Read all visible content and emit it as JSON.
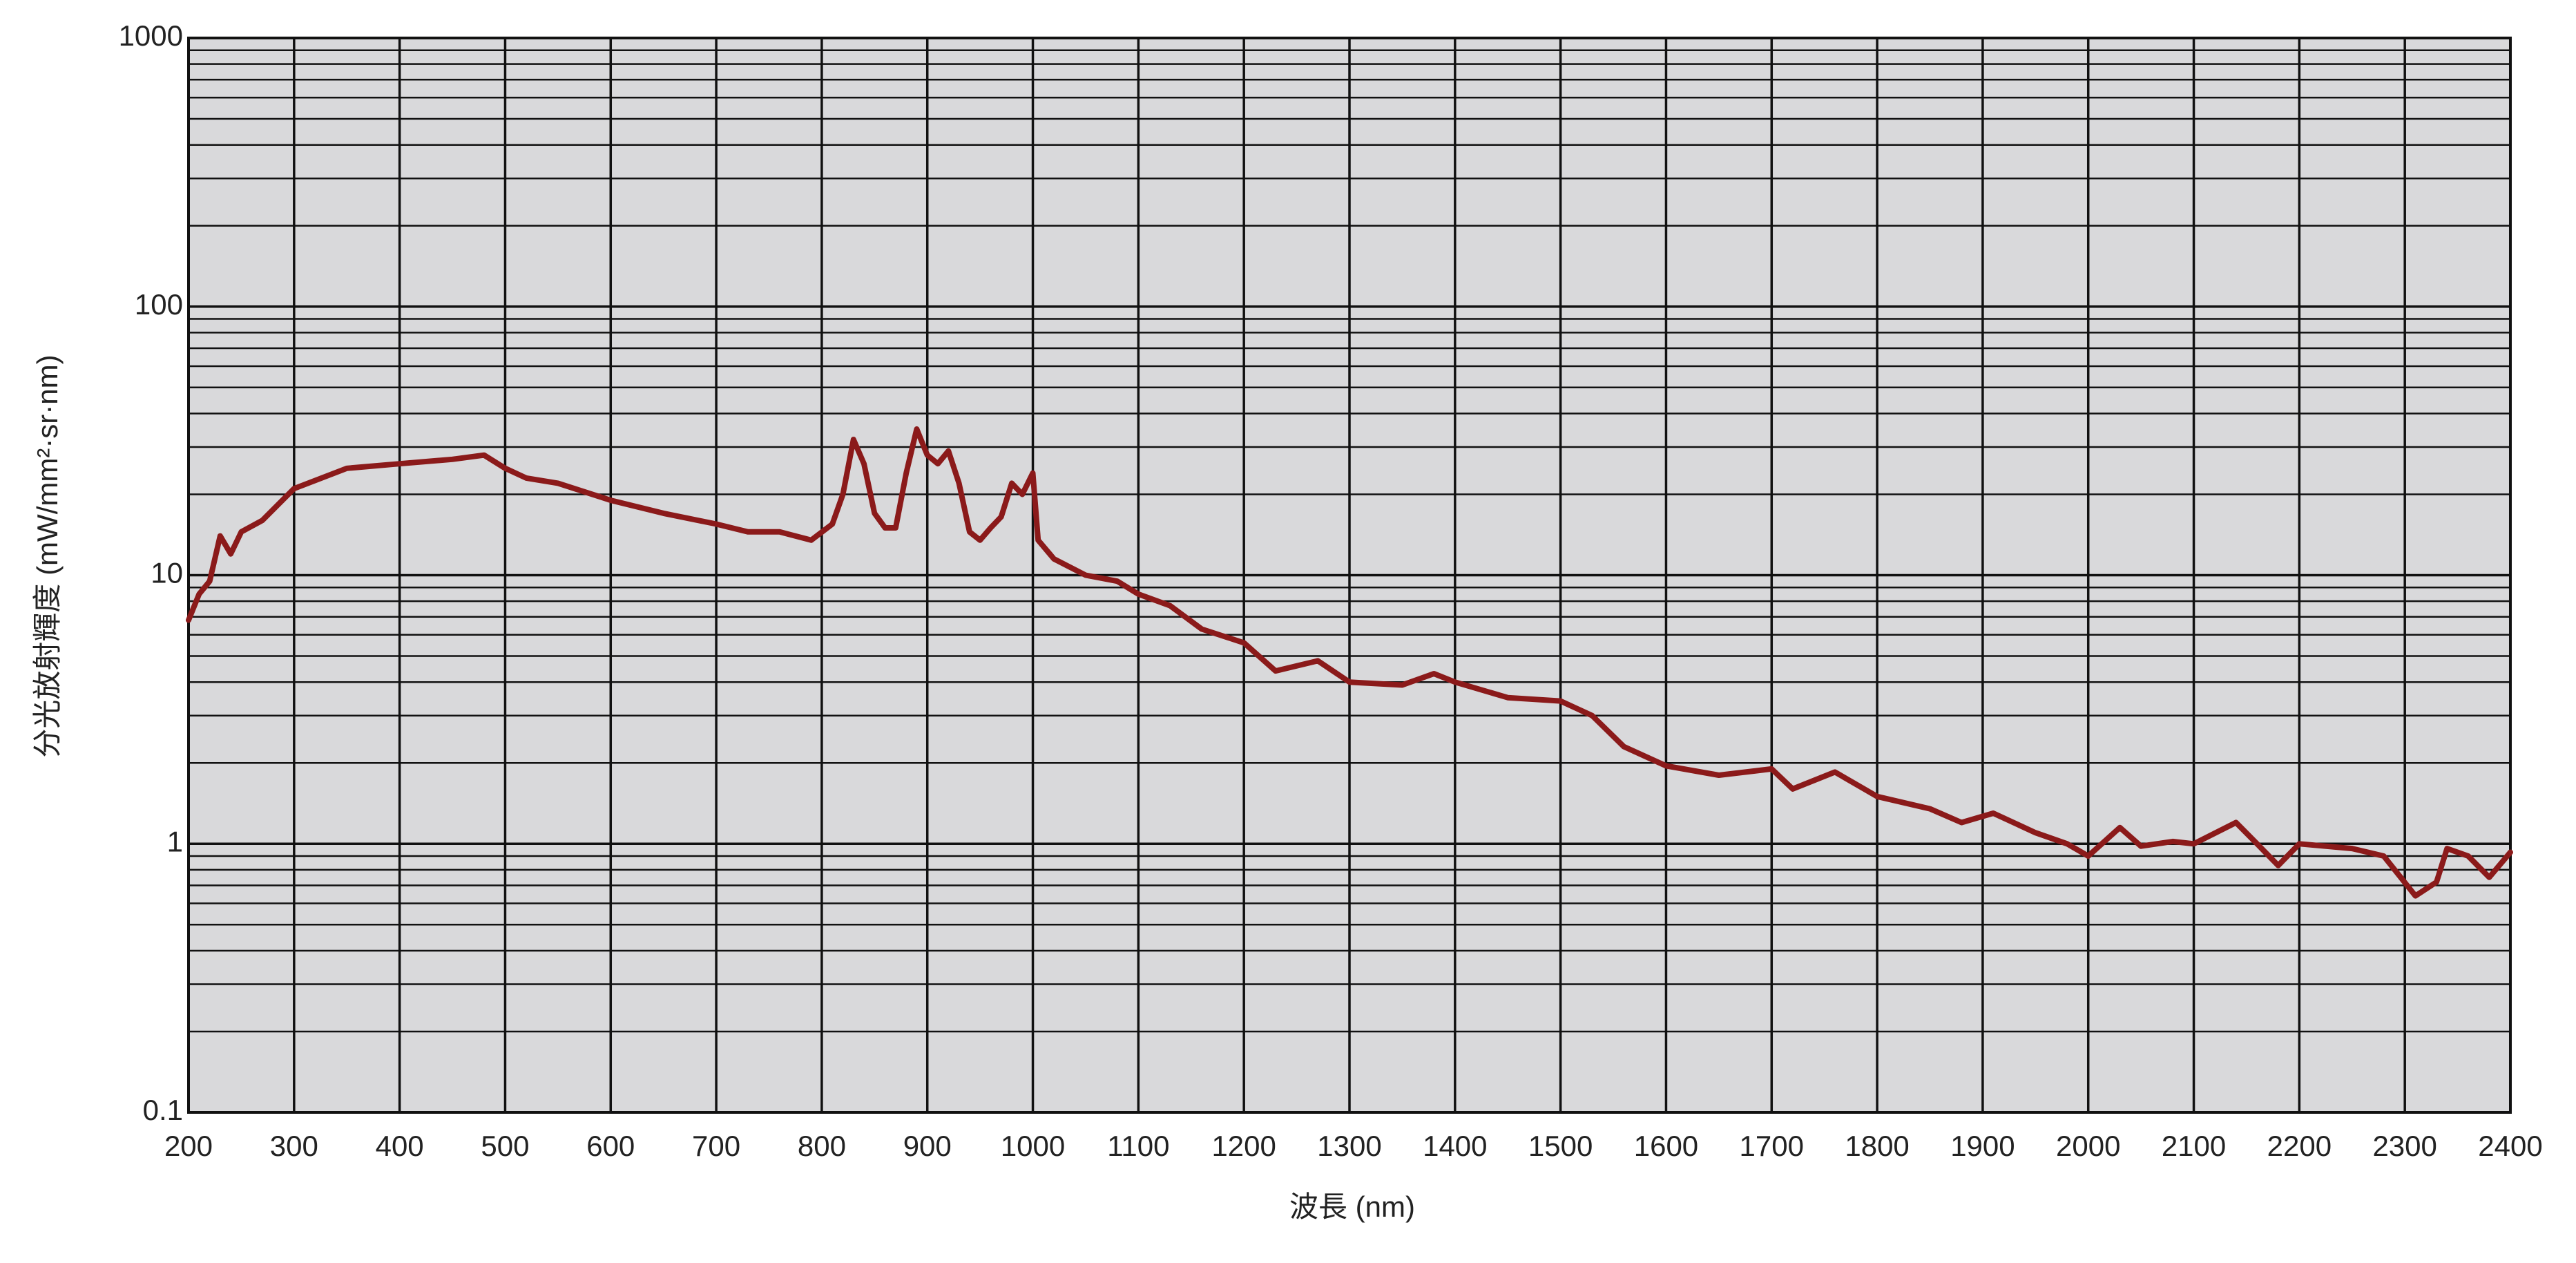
{
  "chart_data": {
    "type": "line",
    "xlabel": "波長 (nm)",
    "ylabel": "分光放射輝度 (mW/mm²·sr·nm)",
    "x": [
      200,
      210,
      220,
      230,
      240,
      250,
      270,
      300,
      350,
      400,
      450,
      480,
      500,
      520,
      550,
      600,
      650,
      700,
      730,
      760,
      790,
      810,
      820,
      830,
      840,
      850,
      860,
      870,
      880,
      890,
      900,
      910,
      920,
      930,
      940,
      950,
      960,
      970,
      980,
      990,
      1000,
      1005,
      1020,
      1050,
      1080,
      1100,
      1130,
      1160,
      1200,
      1230,
      1270,
      1300,
      1350,
      1380,
      1400,
      1450,
      1500,
      1530,
      1560,
      1600,
      1650,
      1700,
      1720,
      1760,
      1800,
      1850,
      1880,
      1910,
      1950,
      1980,
      2000,
      2030,
      2050,
      2080,
      2100,
      2140,
      2160,
      2180,
      2200,
      2250,
      2280,
      2310,
      2330,
      2340,
      2360,
      2380,
      2400
    ],
    "values": [
      6.8,
      8.5,
      9.5,
      14,
      12,
      14.5,
      16,
      21,
      25,
      26,
      27,
      28,
      25,
      23,
      22,
      19,
      17,
      15.5,
      14.5,
      14.5,
      13.5,
      15.5,
      20,
      32,
      26,
      17,
      15,
      15,
      24,
      35,
      28,
      26,
      29,
      22,
      14.5,
      13.5,
      15,
      16.5,
      22,
      20,
      24,
      13.5,
      11.5,
      10,
      9.5,
      8.5,
      7.7,
      6.3,
      5.6,
      4.4,
      4.8,
      4.0,
      3.9,
      4.3,
      4.0,
      3.5,
      3.4,
      3.0,
      2.3,
      1.95,
      1.8,
      1.9,
      1.6,
      1.85,
      1.5,
      1.35,
      1.2,
      1.3,
      1.1,
      1.0,
      0.9,
      1.15,
      0.98,
      1.02,
      1.0,
      1.2,
      1.0,
      0.83,
      1.0,
      0.96,
      0.9,
      0.64,
      0.72,
      0.96,
      0.9,
      0.75,
      0.93
    ],
    "color": "#8b1a1a",
    "xlim": [
      200,
      2400
    ],
    "ylim": [
      0.1,
      1000
    ],
    "xticks": [
      200,
      300,
      400,
      500,
      600,
      700,
      800,
      900,
      1000,
      1100,
      1200,
      1300,
      1400,
      1500,
      1600,
      1700,
      1800,
      1900,
      2000,
      2100,
      2200,
      2300,
      2400
    ],
    "yticks": [
      0.1,
      1,
      10,
      100,
      1000
    ],
    "log_y": true,
    "grid": true,
    "minor_grid": true,
    "plot_background": "#d9d9db"
  }
}
